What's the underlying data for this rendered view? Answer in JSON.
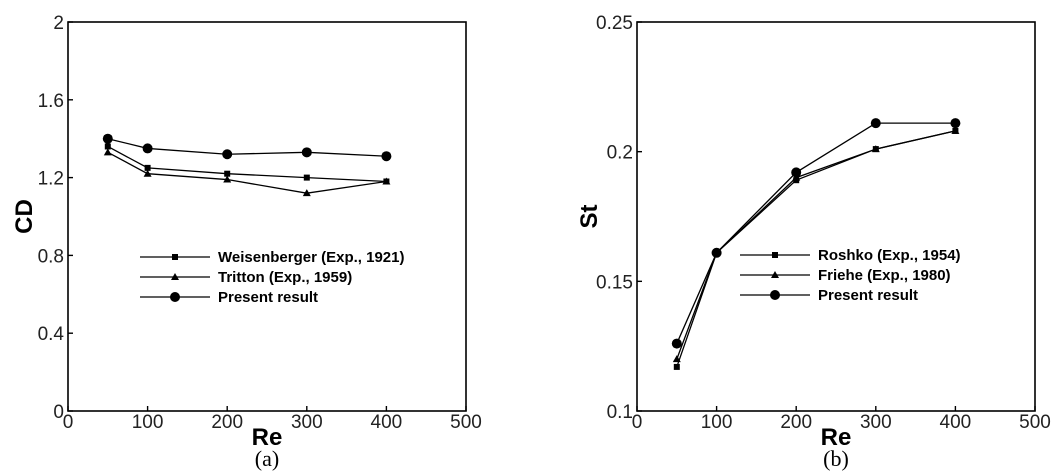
{
  "chart_data": [
    {
      "type": "line",
      "panel_label": "(a)",
      "xlabel": "Re",
      "ylabel": "CD",
      "xlim": [
        0,
        500
      ],
      "ylim": [
        0,
        2
      ],
      "xticks": [
        "0",
        "100",
        "200",
        "300",
        "400",
        "500"
      ],
      "yticks": [
        "0",
        "0.4",
        "0.8",
        "1.2",
        "1.6",
        "2"
      ],
      "grid": false,
      "legend_position": "center",
      "series": [
        {
          "name": "Weisenberger (Exp., 1921)",
          "marker": "square",
          "x": [
            50,
            100,
            200,
            300,
            400
          ],
          "y": [
            1.36,
            1.25,
            1.22,
            1.2,
            1.18
          ]
        },
        {
          "name": "Tritton (Exp., 1959)",
          "marker": "triangle",
          "x": [
            50,
            100,
            200,
            300,
            400
          ],
          "y": [
            1.33,
            1.22,
            1.19,
            1.12,
            1.18
          ]
        },
        {
          "name": "Present result",
          "marker": "circle",
          "x": [
            50,
            100,
            200,
            300,
            400
          ],
          "y": [
            1.4,
            1.35,
            1.32,
            1.33,
            1.31
          ]
        }
      ]
    },
    {
      "type": "line",
      "panel_label": "(b)",
      "xlabel": "Re",
      "ylabel": "St",
      "xlim": [
        0,
        500
      ],
      "ylim": [
        0.1,
        0.25
      ],
      "xticks": [
        "0",
        "100",
        "200",
        "300",
        "400",
        "500"
      ],
      "yticks": [
        "0.1",
        "0.15",
        "0.2",
        "0.25"
      ],
      "grid": false,
      "legend_position": "center-right",
      "series": [
        {
          "name": "Roshko (Exp., 1954)",
          "marker": "square",
          "x": [
            50,
            100,
            200,
            300,
            400
          ],
          "y": [
            0.117,
            0.161,
            0.189,
            0.201,
            0.208
          ]
        },
        {
          "name": "Friehe (Exp., 1980)",
          "marker": "triangle",
          "x": [
            50,
            100,
            200,
            300,
            400
          ],
          "y": [
            0.12,
            0.161,
            0.19,
            0.201,
            0.208
          ]
        },
        {
          "name": "Present result",
          "marker": "circle",
          "x": [
            50,
            100,
            200,
            300,
            400
          ],
          "y": [
            0.126,
            0.161,
            0.192,
            0.211,
            0.211
          ]
        }
      ]
    }
  ]
}
